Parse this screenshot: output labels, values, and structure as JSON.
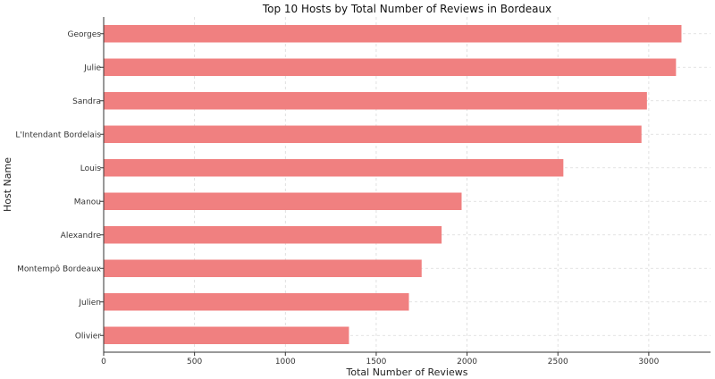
{
  "chart_data": {
    "type": "bar",
    "orientation": "horizontal",
    "title": "Top 10 Hosts by Total Number of Reviews in Bordeaux",
    "xlabel": "Total Number of Reviews",
    "ylabel": "Host Name",
    "categories": [
      "Georges",
      "Julie",
      "Sandra",
      "L'Intendant Bordelais",
      "Louis",
      "Manou",
      "Alexandre",
      "Montempô Bordeaux",
      "Julien",
      "Olivier"
    ],
    "values": [
      3180,
      3150,
      2990,
      2960,
      2530,
      1970,
      1860,
      1750,
      1680,
      1350
    ],
    "xlim": [
      0,
      3340
    ],
    "xticks": [
      0,
      500,
      1000,
      1500,
      2000,
      2500,
      3000
    ],
    "grid": true,
    "bar_color": "#f08080",
    "legend": "none"
  }
}
